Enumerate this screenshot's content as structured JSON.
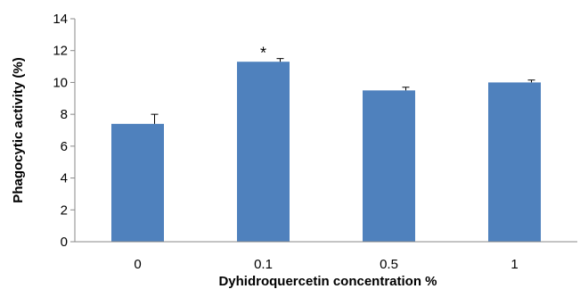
{
  "chart_data": {
    "type": "bar",
    "categories": [
      "0",
      "0.1",
      "0.5",
      "1"
    ],
    "values": [
      7.4,
      11.3,
      9.5,
      10.0
    ],
    "error_plus": [
      0.6,
      0.2,
      0.2,
      0.15
    ],
    "annotations": [
      "",
      "*",
      "",
      ""
    ],
    "xlabel": "Dyhidroquercetin concentration %",
    "ylabel": "Phagocytic activity (%)",
    "ylim": [
      0,
      14
    ],
    "yticks": [
      0,
      2,
      4,
      6,
      8,
      10,
      12,
      14
    ],
    "bar_color": "#4f81bd",
    "grid": false,
    "legend": "none"
  }
}
